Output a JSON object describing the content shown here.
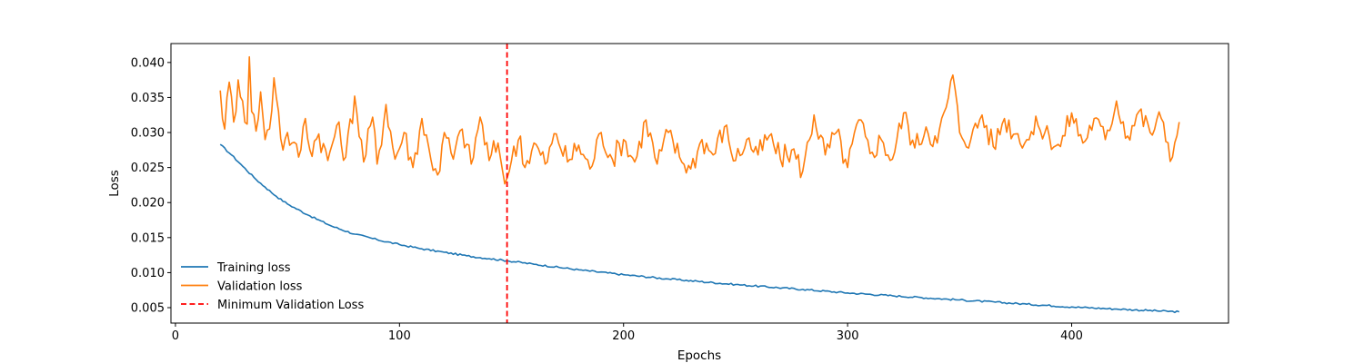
{
  "chart_data": {
    "type": "line",
    "xlabel": "Epochs",
    "ylabel": "Loss",
    "xlim": [
      -2,
      470
    ],
    "ylim": [
      0.0028,
      0.0427
    ],
    "x_ticks": [
      0,
      100,
      200,
      300,
      400
    ],
    "y_ticks": [
      0.005,
      0.01,
      0.015,
      0.02,
      0.025,
      0.03,
      0.035,
      0.04
    ],
    "x_tick_labels": [
      "0",
      "100",
      "200",
      "300",
      "400"
    ],
    "y_tick_labels": [
      "0.005",
      "0.010",
      "0.015",
      "0.020",
      "0.025",
      "0.030",
      "0.035",
      "0.040"
    ],
    "grid": false,
    "legend_position": "lower-left",
    "x_start": 20,
    "x_end": 448,
    "series": [
      {
        "name": "Training loss",
        "color": "#1f77b4",
        "style": "solid",
        "x": [
          20,
          25,
          30,
          35,
          40,
          45,
          50,
          60,
          70,
          80,
          90,
          100,
          110,
          120,
          130,
          140,
          148,
          160,
          180,
          200,
          220,
          250,
          280,
          300,
          320,
          350,
          380,
          400,
          420,
          448
        ],
        "values": [
          0.0283,
          0.0268,
          0.0252,
          0.0236,
          0.0222,
          0.0209,
          0.0198,
          0.0181,
          0.0166,
          0.0155,
          0.0147,
          0.014,
          0.0134,
          0.0129,
          0.0124,
          0.012,
          0.0117,
          0.0112,
          0.0104,
          0.0097,
          0.0091,
          0.0083,
          0.0076,
          0.0071,
          0.0067,
          0.0061,
          0.0055,
          0.0051,
          0.0048,
          0.0044
        ]
      },
      {
        "name": "Validation loss",
        "color": "#ff7f0e",
        "style": "solid",
        "x": [
          20,
          22,
          24,
          26,
          28,
          30,
          32,
          33,
          34,
          36,
          38,
          40,
          42,
          44,
          46,
          48,
          50,
          52,
          55,
          58,
          60,
          64,
          68,
          72,
          76,
          80,
          84,
          88,
          90,
          94,
          98,
          102,
          106,
          110,
          114,
          118,
          120,
          124,
          128,
          132,
          136,
          140,
          144,
          146,
          148,
          150,
          154,
          156,
          160,
          165,
          170,
          175,
          180,
          185,
          190,
          195,
          200,
          205,
          210,
          215,
          220,
          225,
          230,
          235,
          240,
          245,
          250,
          255,
          260,
          265,
          270,
          275,
          280,
          285,
          290,
          295,
          300,
          305,
          310,
          315,
          320,
          325,
          330,
          335,
          340,
          345,
          347,
          350,
          355,
          360,
          365,
          370,
          375,
          380,
          385,
          390,
          395,
          400,
          405,
          410,
          415,
          420,
          425,
          430,
          435,
          440,
          445,
          448
        ],
        "values": [
          0.036,
          0.0305,
          0.0372,
          0.0315,
          0.0375,
          0.0345,
          0.0312,
          0.0408,
          0.033,
          0.0302,
          0.0358,
          0.029,
          0.0305,
          0.0378,
          0.033,
          0.0275,
          0.03,
          0.0285,
          0.0265,
          0.032,
          0.0275,
          0.0298,
          0.026,
          0.031,
          0.0265,
          0.0352,
          0.0258,
          0.0322,
          0.0255,
          0.034,
          0.0262,
          0.03,
          0.025,
          0.032,
          0.0262,
          0.0245,
          0.03,
          0.0262,
          0.0305,
          0.0255,
          0.0322,
          0.026,
          0.0285,
          0.0245,
          0.0235,
          0.026,
          0.0295,
          0.025,
          0.0285,
          0.0255,
          0.0298,
          0.0258,
          0.0282,
          0.0248,
          0.03,
          0.0262,
          0.029,
          0.0258,
          0.0318,
          0.0255,
          0.03,
          0.0265,
          0.0248,
          0.029,
          0.0268,
          0.0308,
          0.026,
          0.029,
          0.0268,
          0.0295,
          0.0262,
          0.0275,
          0.0245,
          0.0325,
          0.0268,
          0.03,
          0.025,
          0.0318,
          0.027,
          0.029,
          0.0262,
          0.0328,
          0.0278,
          0.0308,
          0.0285,
          0.035,
          0.0382,
          0.03,
          0.029,
          0.0325,
          0.028,
          0.032,
          0.0298,
          0.029,
          0.031,
          0.0295,
          0.028,
          0.0328,
          0.0285,
          0.032,
          0.029,
          0.0345,
          0.0295,
          0.033,
          0.03,
          0.032,
          0.0265,
          0.0315
        ]
      }
    ],
    "vline": {
      "name": "Minimum Validation Loss",
      "x": 148,
      "color": "#ff0000",
      "style": "dashed"
    }
  }
}
